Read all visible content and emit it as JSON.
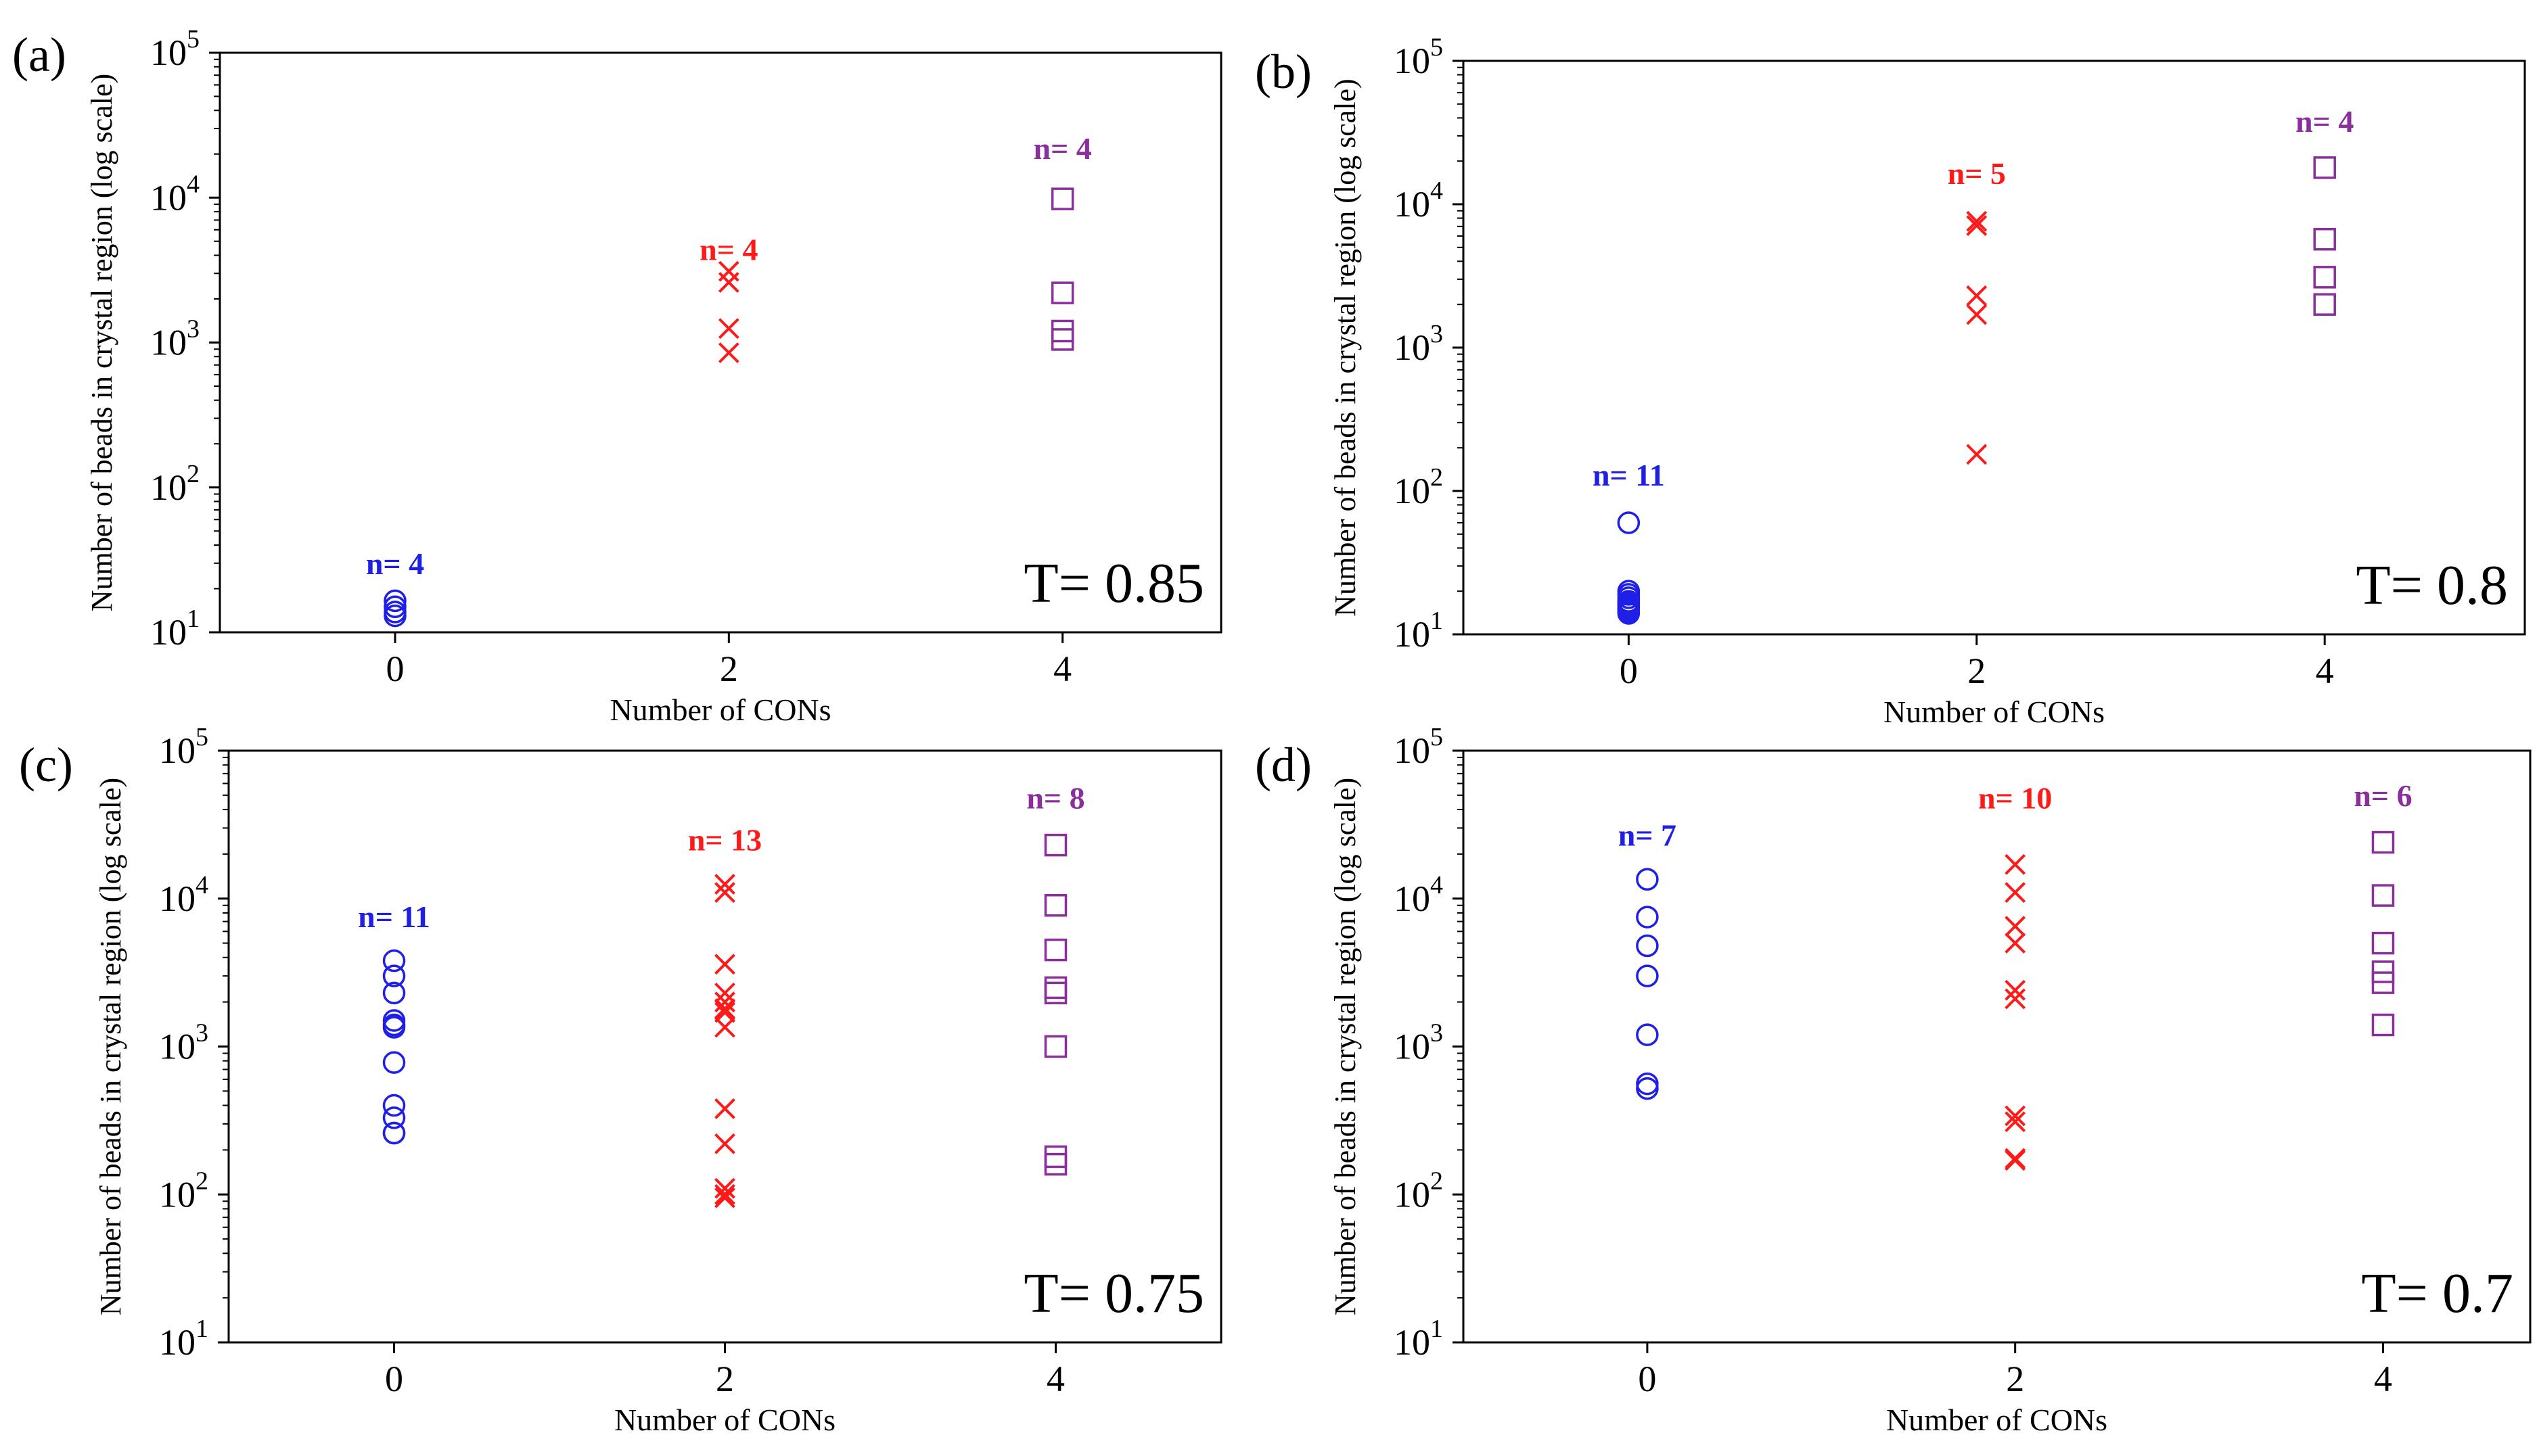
{
  "chart_data": [
    {
      "type": "scatter",
      "panel_label": "(a)",
      "annotation": "T= 0.85",
      "xlabel": "Number of CONs",
      "ylabel": "Number of beads in crystal region (log scale)",
      "y_scale": "log",
      "ylim": [
        10,
        100000
      ],
      "xlim": [
        -1.05,
        4.95
      ],
      "x_ticks": [
        "0",
        "2",
        "4"
      ],
      "y_ticks": [
        10,
        100,
        1000,
        10000,
        100000
      ],
      "grid": false,
      "series": [
        {
          "x": 0,
          "marker": "circle",
          "color": "#1f1fe6",
          "count_label": "n= 4",
          "label_y": 30,
          "values": [
            16.5,
            15,
            13.8,
            13
          ]
        },
        {
          "x": 2,
          "marker": "x",
          "color": "#ff1a1a",
          "count_label": "n= 4",
          "label_y": 4400,
          "values": [
            3100,
            2600,
            1250,
            850
          ]
        },
        {
          "x": 4,
          "marker": "square",
          "color": "#8b2f9c",
          "count_label": "n= 4",
          "label_y": 22000,
          "values": [
            9800,
            2200,
            1200,
            1050
          ]
        }
      ]
    },
    {
      "type": "scatter",
      "panel_label": "(b)",
      "annotation": "T= 0.8",
      "xlabel": "Number of CONs",
      "ylabel": "Number of beads in crystal region (log scale)",
      "y_scale": "log",
      "ylim": [
        10,
        100000
      ],
      "xlim": [
        -0.95,
        5.15
      ],
      "x_ticks": [
        "0",
        "2",
        "4"
      ],
      "y_ticks": [
        10,
        100,
        1000,
        10000,
        100000
      ],
      "grid": false,
      "series": [
        {
          "x": 0,
          "marker": "circle",
          "color": "#1f1fe6",
          "count_label": "n= 11",
          "label_y": 130,
          "values": [
            60,
            20,
            19,
            18,
            17,
            16.5,
            16,
            15.5,
            15,
            14.5,
            14
          ]
        },
        {
          "x": 2,
          "marker": "x",
          "color": "#ff1a1a",
          "count_label": "n= 5",
          "label_y": 16500,
          "values": [
            7600,
            7100,
            2300,
            1700,
            180
          ]
        },
        {
          "x": 4,
          "marker": "square",
          "color": "#8b2f9c",
          "count_label": "n= 4",
          "label_y": 38000,
          "values": [
            18000,
            5700,
            3100,
            2000
          ]
        }
      ]
    },
    {
      "type": "scatter",
      "panel_label": "(c)",
      "annotation": "T= 0.75",
      "xlabel": "Number of CONs",
      "ylabel": "Number of beads in crystal region (log scale)",
      "y_scale": "log",
      "ylim": [
        10,
        100000
      ],
      "xlim": [
        -1.0,
        5.0
      ],
      "x_ticks": [
        "0",
        "2",
        "4"
      ],
      "y_ticks": [
        10,
        100,
        1000,
        10000,
        100000
      ],
      "grid": false,
      "series": [
        {
          "x": 0,
          "marker": "circle",
          "color": "#1f1fe6",
          "count_label": "n= 11",
          "label_y": 7600,
          "values": [
            3800,
            3000,
            2300,
            1500,
            1400,
            1350,
            780,
            400,
            330,
            260,
            260
          ]
        },
        {
          "x": 2,
          "marker": "x",
          "color": "#ff1a1a",
          "count_label": "n= 13",
          "label_y": 25000,
          "values": [
            12500,
            11000,
            3600,
            2300,
            2000,
            1800,
            1700,
            1350,
            380,
            220,
            110,
            100,
            95
          ]
        },
        {
          "x": 4,
          "marker": "square",
          "color": "#8b2f9c",
          "count_label": "n= 8",
          "label_y": 48000,
          "values": [
            23000,
            9000,
            4500,
            2500,
            2300,
            1000,
            180,
            160
          ]
        }
      ]
    },
    {
      "type": "scatter",
      "panel_label": "(d)",
      "annotation": "T= 0.7",
      "xlabel": "Number of CONs",
      "ylabel": "Number of beads in crystal region (log scale)",
      "y_scale": "log",
      "ylim": [
        10,
        100000
      ],
      "xlim": [
        -1.0,
        4.8
      ],
      "x_ticks": [
        "0",
        "2",
        "4"
      ],
      "y_ticks": [
        10,
        100,
        1000,
        10000,
        100000
      ],
      "grid": false,
      "series": [
        {
          "x": 0,
          "marker": "circle",
          "color": "#1f1fe6",
          "count_label": "n= 7",
          "label_y": 27000,
          "values": [
            13500,
            7500,
            4800,
            3000,
            1200,
            560,
            520
          ]
        },
        {
          "x": 2,
          "marker": "x",
          "color": "#ff1a1a",
          "count_label": "n= 10",
          "label_y": 48000,
          "values": [
            17000,
            11000,
            6500,
            5000,
            2400,
            2100,
            340,
            310,
            175,
            170
          ]
        },
        {
          "x": 4,
          "marker": "square",
          "color": "#8b2f9c",
          "count_label": "n= 6",
          "label_y": 50000,
          "values": [
            24000,
            10500,
            5000,
            3200,
            2700,
            1400
          ]
        }
      ]
    }
  ]
}
